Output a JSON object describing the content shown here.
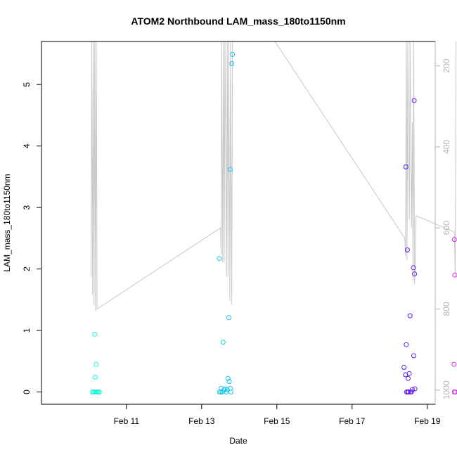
{
  "chart_data": {
    "type": "scatter",
    "title": "ATOM2 Northbound LAM_mass_180to1150nm",
    "xlabel": "Date",
    "ylabel": "LAM_mass_180to1150nm",
    "x_range_days": [
      10.2,
      20.2
    ],
    "ylim": [
      -0.2,
      5.7
    ],
    "x_ticks": [
      {
        "value": 11,
        "label": "Feb 11"
      },
      {
        "value": 13,
        "label": "Feb 13"
      },
      {
        "value": 15,
        "label": "Feb 15"
      },
      {
        "value": 17,
        "label": "Feb 17"
      },
      {
        "value": 19,
        "label": "Feb 19"
      }
    ],
    "y_ticks": [
      0,
      1,
      2,
      3,
      4,
      5
    ],
    "right_axis": {
      "range": [
        1035,
        140
      ],
      "ticks": [
        200,
        400,
        600,
        800,
        1000
      ],
      "color": "#b5b5b5"
    },
    "grid": false,
    "points": [
      {
        "x": 10.1,
        "y": 0.0,
        "color": "#19f5d8"
      },
      {
        "x": 10.13,
        "y": 0.0,
        "color": "#19f5d8"
      },
      {
        "x": 10.16,
        "y": 0.0,
        "color": "#19f5d8"
      },
      {
        "x": 10.19,
        "y": 0.0,
        "color": "#19f5d8"
      },
      {
        "x": 10.22,
        "y": 0.0,
        "color": "#19f5d8"
      },
      {
        "x": 10.25,
        "y": 0.0,
        "color": "#19f5d8"
      },
      {
        "x": 10.28,
        "y": 0.0,
        "color": "#19f5d8"
      },
      {
        "x": 10.16,
        "y": 0.94,
        "color": "#19f5d8"
      },
      {
        "x": 10.2,
        "y": 0.45,
        "color": "#19f5d8"
      },
      {
        "x": 10.17,
        "y": 0.24,
        "color": "#1cf0dd"
      },
      {
        "x": 13.47,
        "y": 2.17,
        "color": "#13c6ec"
      },
      {
        "x": 13.48,
        "y": 0.0,
        "color": "#13c6ec"
      },
      {
        "x": 13.51,
        "y": 0.0,
        "color": "#13c6ec"
      },
      {
        "x": 13.55,
        "y": 0.0,
        "color": "#13c6ec"
      },
      {
        "x": 13.52,
        "y": 0.06,
        "color": "#13c6ec"
      },
      {
        "x": 13.6,
        "y": 0.03,
        "color": "#13c6ec"
      },
      {
        "x": 13.57,
        "y": 0.81,
        "color": "#13c6ec"
      },
      {
        "x": 13.62,
        "y": 0.05,
        "color": "#13c6ec"
      },
      {
        "x": 13.65,
        "y": 0.0,
        "color": "#13c6ec"
      },
      {
        "x": 13.68,
        "y": 0.04,
        "color": "#13c6ec"
      },
      {
        "x": 13.7,
        "y": 0.22,
        "color": "#13c6ec"
      },
      {
        "x": 13.73,
        "y": 0.17,
        "color": "#13c6ec"
      },
      {
        "x": 13.72,
        "y": 1.21,
        "color": "#13c6ec"
      },
      {
        "x": 13.76,
        "y": 0.06,
        "color": "#13c6ec"
      },
      {
        "x": 13.78,
        "y": 0.0,
        "color": "#13c6ec"
      },
      {
        "x": 13.76,
        "y": 3.62,
        "color": "#13c6ec"
      },
      {
        "x": 13.8,
        "y": 5.34,
        "color": "#13c6ec"
      },
      {
        "x": 13.82,
        "y": 5.49,
        "color": "#13c6ec"
      },
      {
        "x": 18.38,
        "y": 0.4,
        "color": "#5a1af0"
      },
      {
        "x": 18.42,
        "y": 0.28,
        "color": "#5a1af0"
      },
      {
        "x": 18.43,
        "y": 3.66,
        "color": "#5a1af0"
      },
      {
        "x": 18.44,
        "y": 0.77,
        "color": "#5a1af0"
      },
      {
        "x": 18.45,
        "y": 0.0,
        "color": "#5a1af0"
      },
      {
        "x": 18.48,
        "y": 0.0,
        "color": "#5a1af0"
      },
      {
        "x": 18.5,
        "y": 0.0,
        "color": "#5a1af0"
      },
      {
        "x": 18.47,
        "y": 2.31,
        "color": "#5a1af0"
      },
      {
        "x": 18.49,
        "y": 0.22,
        "color": "#5a1af0"
      },
      {
        "x": 18.52,
        "y": 0.3,
        "color": "#5a1af0"
      },
      {
        "x": 18.54,
        "y": 1.24,
        "color": "#5a1af0"
      },
      {
        "x": 18.55,
        "y": 0.0,
        "color": "#5a1af0"
      },
      {
        "x": 18.58,
        "y": 0.0,
        "color": "#6b1bf0"
      },
      {
        "x": 18.6,
        "y": 0.04,
        "color": "#6b1bf0"
      },
      {
        "x": 18.63,
        "y": 2.02,
        "color": "#6b1bf0"
      },
      {
        "x": 18.64,
        "y": 0.59,
        "color": "#6b1bf0"
      },
      {
        "x": 18.65,
        "y": 4.74,
        "color": "#6b1bf0"
      },
      {
        "x": 18.66,
        "y": 1.92,
        "color": "#6b1bf0"
      },
      {
        "x": 18.67,
        "y": 0.05,
        "color": "#6b1bf0"
      },
      {
        "x": 19.72,
        "y": 2.48,
        "color": "#d02be2"
      },
      {
        "x": 19.73,
        "y": 1.9,
        "color": "#d02be2"
      },
      {
        "x": 19.71,
        "y": 0.45,
        "color": "#d02be2"
      },
      {
        "x": 19.72,
        "y": 0.0,
        "color": "#d02be2"
      },
      {
        "x": 19.74,
        "y": 0.0,
        "color": "#d02be2"
      }
    ],
    "altitude_series": {
      "color": "#c8c8c8",
      "values": [
        [
          10.06,
          720
        ],
        [
          10.08,
          140
        ],
        [
          10.1,
          765
        ],
        [
          10.12,
          140
        ],
        [
          10.14,
          790
        ],
        [
          10.16,
          140
        ],
        [
          10.18,
          805
        ],
        [
          10.2,
          140
        ],
        [
          10.22,
          800
        ],
        [
          13.5,
          600
        ],
        [
          13.52,
          665
        ],
        [
          13.53,
          140
        ],
        [
          13.56,
          685
        ],
        [
          13.58,
          140
        ],
        [
          13.6,
          685
        ],
        [
          13.62,
          140
        ],
        [
          13.66,
          720
        ],
        [
          13.68,
          140
        ],
        [
          13.7,
          720
        ],
        [
          13.72,
          140
        ],
        [
          13.75,
          780
        ],
        [
          13.77,
          140
        ],
        [
          13.8,
          790
        ],
        [
          13.82,
          140
        ],
        [
          13.86,
          140
        ],
        [
          14.95,
          140
        ],
        [
          18.4,
          625
        ],
        [
          18.42,
          670
        ],
        [
          18.44,
          140
        ],
        [
          18.46,
          680
        ],
        [
          18.48,
          140
        ],
        [
          18.52,
          580
        ],
        [
          18.54,
          140
        ],
        [
          18.58,
          600
        ],
        [
          18.6,
          340
        ],
        [
          18.62,
          730
        ],
        [
          18.64,
          140
        ],
        [
          18.66,
          740
        ],
        [
          18.68,
          690
        ],
        [
          18.7,
          570
        ],
        [
          19.72,
          610
        ],
        [
          19.74,
          720
        ],
        [
          19.76,
          140
        ]
      ]
    }
  }
}
